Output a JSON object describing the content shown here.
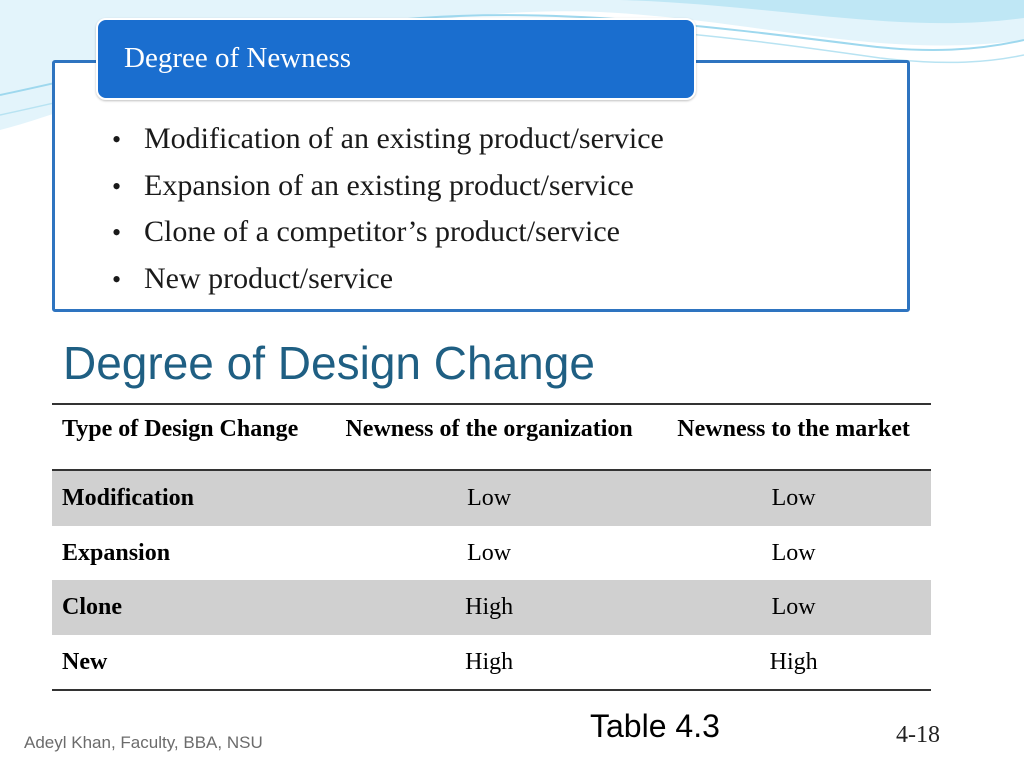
{
  "box": {
    "title": "Degree of Newness",
    "bullets": [
      "Modification of an existing product/service",
      "Expansion of an existing product/service",
      "Clone of a competitor’s product/service",
      "New product/service"
    ]
  },
  "heading": "Degree of Design Change",
  "table": {
    "headers": [
      "Type of Design Change",
      "Newness of the organization",
      "Newness to the market"
    ],
    "rows": [
      [
        "Modification",
        "Low",
        "Low"
      ],
      [
        "Expansion",
        "Low",
        "Low"
      ],
      [
        "Clone",
        "High",
        "Low"
      ],
      [
        "New",
        "High",
        "High"
      ]
    ]
  },
  "caption": "Table 4.3",
  "footer": "Adeyl Khan, Faculty, BBA, NSU",
  "page_number": "4-18",
  "colors": {
    "header_blue": "#1a6ecf",
    "box_border": "#2e74c0",
    "heading_teal": "#1f5f83",
    "row_shade": "#d0d0d0"
  }
}
